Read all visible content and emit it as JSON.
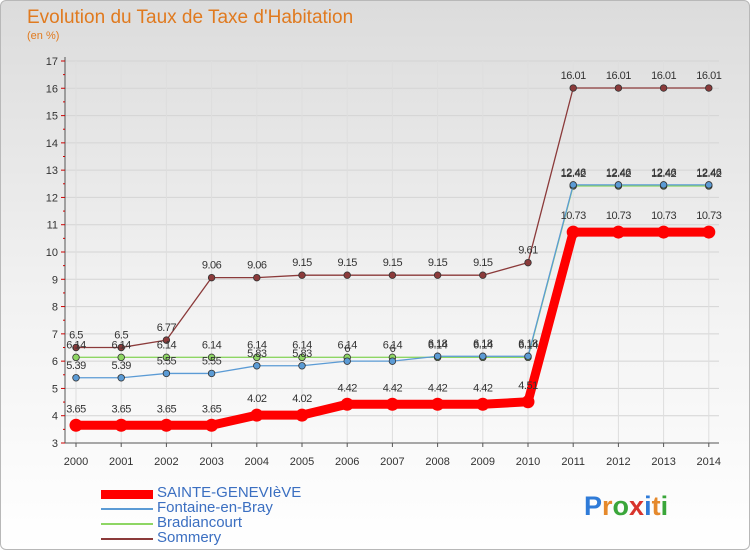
{
  "title": "Evolution du Taux de Taxe d'Habitation",
  "subtitle": "(en %)",
  "logo_text": "Proxiti",
  "chart_data": {
    "type": "line",
    "title": "Evolution du Taux de Taxe d'Habitation",
    "ylabel": "(en %)",
    "xlabel": "",
    "x": [
      2000,
      2001,
      2002,
      2003,
      2004,
      2005,
      2006,
      2007,
      2008,
      2009,
      2010,
      2011,
      2012,
      2013,
      2014
    ],
    "ylim": [
      3,
      17
    ],
    "yticks": [
      3,
      4,
      5,
      6,
      7,
      8,
      9,
      10,
      11,
      12,
      13,
      14,
      15,
      16,
      17
    ],
    "grid": true,
    "legend_position": "bottom-left",
    "series": [
      {
        "name": "SAINTE-GENEVIèVE",
        "color": "#ff0000",
        "values": [
          3.65,
          3.65,
          3.65,
          3.65,
          4.02,
          4.02,
          4.42,
          4.42,
          4.42,
          4.42,
          4.51,
          10.73,
          10.73,
          10.73,
          10.73
        ],
        "labels": [
          "3.65",
          "3.65",
          "3.65",
          "3.65",
          "4.02",
          "4.02",
          "4.42",
          "4.42",
          "4.42",
          "4.42",
          "4.51",
          "10.73",
          "10.73",
          "10.73",
          "10.73"
        ]
      },
      {
        "name": "Fontaine-en-Bray",
        "color": "#5b9bd5",
        "values": [
          5.39,
          5.39,
          5.55,
          5.55,
          5.83,
          5.83,
          6.0,
          6.0,
          6.18,
          6.18,
          6.18,
          12.46,
          12.46,
          12.46,
          12.46
        ],
        "labels": [
          "5.39",
          "5.39",
          "5.55",
          "5.55",
          "5.83",
          "5.83",
          "6",
          "6",
          "6.18",
          "6.18",
          "6.18",
          "12.46",
          "12.46",
          "12.46",
          "12.46"
        ]
      },
      {
        "name": "Bradiancourt",
        "color": "#8ed664",
        "values": [
          6.14,
          6.14,
          6.14,
          6.14,
          6.14,
          6.14,
          6.14,
          6.14,
          6.14,
          6.14,
          6.14,
          12.42,
          12.42,
          12.42,
          12.42
        ],
        "labels": [
          "6.14",
          "6.14",
          "6.14",
          "6.14",
          "6.14",
          "6.14",
          "6.14",
          "6.14",
          "6.14",
          "6.14",
          "6.14",
          "12.42",
          "12.42",
          "12.42",
          "12.42"
        ]
      },
      {
        "name": "Sommery",
        "color": "#8b3a3a",
        "values": [
          6.5,
          6.5,
          6.77,
          9.06,
          9.06,
          9.15,
          9.15,
          9.15,
          9.15,
          9.15,
          9.61,
          16.01,
          16.01,
          16.01,
          16.01
        ],
        "labels": [
          "6.5",
          "6.5",
          "6.77",
          "9.06",
          "9.06",
          "9.15",
          "9.15",
          "9.15",
          "9.15",
          "9.15",
          "9.61",
          "16.01",
          "16.01",
          "16.01",
          "16.01"
        ]
      }
    ]
  }
}
